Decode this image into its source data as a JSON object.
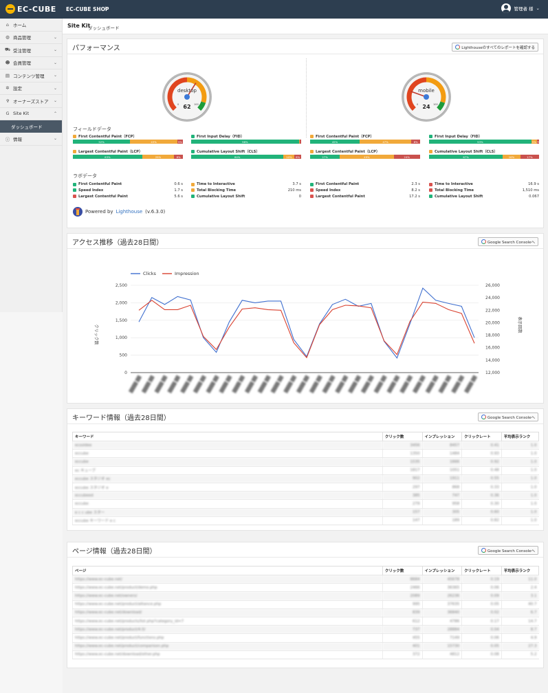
{
  "header": {
    "logo_text": "EC-CUBE",
    "shop_name": "EC-CUBE SHOP",
    "user_label": "管理者 様"
  },
  "sidebar": {
    "items": [
      {
        "label": "ホーム",
        "icon": "home-icon"
      },
      {
        "label": "商品管理",
        "icon": "store-icon"
      },
      {
        "label": "受注管理",
        "icon": "cart-icon"
      },
      {
        "label": "会員管理",
        "icon": "users-icon"
      },
      {
        "label": "コンテンツ管理",
        "icon": "document-icon"
      },
      {
        "label": "設定",
        "icon": "gear-icon"
      },
      {
        "label": "オーナーズストア",
        "icon": "plug-icon"
      },
      {
        "label": "Site Kit",
        "icon": "google-icon"
      },
      {
        "label": "情報",
        "icon": "info-icon"
      }
    ],
    "active_sub": "ダッシュボード"
  },
  "page": {
    "title": "Site Kit",
    "subtitle": "ダッシュボード"
  },
  "performance": {
    "title": "パフォーマンス",
    "button_label": "Lighthouseのすべてのレポートを確認する",
    "field_label": "フィールドデータ",
    "lab_label": "ラボデータ",
    "powered_prefix": "Powered by",
    "powered_link": "Lighthouse",
    "powered_version": "(v.6.3.0)",
    "gauges": [
      {
        "label": "desktop",
        "score": "62",
        "value": 62
      },
      {
        "label": "mobile",
        "score": "24",
        "value": 24
      }
    ],
    "field_metrics": [
      {
        "title": "First Contentful Paint（FCP）",
        "status": "orange",
        "split": [
          52,
          43,
          5
        ],
        "labels": [
          "52%",
          "43%",
          "5%"
        ]
      },
      {
        "title": "First Input Delay（FID）",
        "status": "green",
        "split": [
          98,
          1,
          1
        ],
        "labels": [
          "98%",
          "",
          ""
        ]
      },
      {
        "title": "Largest Contentful Paint（LCP）",
        "status": "orange",
        "split": [
          63,
          29,
          8
        ],
        "labels": [
          "63%",
          "29%",
          "8%"
        ]
      },
      {
        "title": "Cumulative Layout Shift（CLS）",
        "status": "green",
        "split": [
          84,
          10,
          6
        ],
        "labels": [
          "84%",
          "10%",
          "6%"
        ]
      },
      {
        "title": "First Contentful Paint（FCP）",
        "status": "orange",
        "split": [
          45,
          47,
          8
        ],
        "labels": [
          "45%",
          "47%",
          "8%"
        ]
      },
      {
        "title": "First Input Delay（FID）",
        "status": "green",
        "split": [
          93,
          5,
          2
        ],
        "labels": [
          "93%",
          "5%",
          "2%"
        ]
      },
      {
        "title": "Largest Contentful Paint（LCP）",
        "status": "orange",
        "split": [
          27,
          49,
          24
        ],
        "labels": [
          "27%",
          "49%",
          "24%"
        ]
      },
      {
        "title": "Cumulative Layout Shift（CLS）",
        "status": "orange",
        "split": [
          67,
          16,
          17
        ],
        "labels": [
          "67%",
          "16%",
          "17%"
        ]
      }
    ],
    "lab_metrics": [
      [
        {
          "name": "First Contentful Paint",
          "value": "0.6 s",
          "status": "green"
        },
        {
          "name": "Speed Index",
          "value": "1.7 s",
          "status": "green"
        },
        {
          "name": "Largest Contentful Paint",
          "value": "5.6 s",
          "status": "red"
        }
      ],
      [
        {
          "name": "Time to Interactive",
          "value": "3.7 s",
          "status": "orange"
        },
        {
          "name": "Total Blocking Time",
          "value": "210 ms",
          "status": "orange"
        },
        {
          "name": "Cumulative Layout Shift",
          "value": "0",
          "status": "green"
        }
      ],
      [
        {
          "name": "First Contentful Paint",
          "value": "2.3 s",
          "status": "green"
        },
        {
          "name": "Speed Index",
          "value": "8.2 s",
          "status": "red"
        },
        {
          "name": "Largest Contentful Paint",
          "value": "17.2 s",
          "status": "red"
        }
      ],
      [
        {
          "name": "Time to Interactive",
          "value": "16.9 s",
          "status": "red"
        },
        {
          "name": "Total Blocking Time",
          "value": "1,510 ms",
          "status": "red"
        },
        {
          "name": "Cumulative Layout Shift",
          "value": "0.067",
          "status": "green"
        }
      ]
    ]
  },
  "access": {
    "title": "アクセス推移（過去28日間）",
    "button_label": "Google Search Consoleへ"
  },
  "chart_data": {
    "type": "line",
    "title": "",
    "ylabel": "クリック数",
    "y2label": "表示回数",
    "ylim": [
      0,
      2500
    ],
    "y2lim": [
      12000,
      26000
    ],
    "yticks": [
      "0",
      "500",
      "1,000",
      "1,500",
      "2,000",
      "2,500"
    ],
    "y2ticks": [
      "12,000",
      "14,000",
      "16,000",
      "18,000",
      "20,000",
      "22,000",
      "24,000",
      "26,000"
    ],
    "legend_position": "top-left",
    "series": [
      {
        "name": "Clicks",
        "axis": "left",
        "color": "#3f6fcf",
        "values": [
          1450,
          2150,
          1950,
          2180,
          2080,
          1000,
          580,
          1450,
          2070,
          2000,
          2050,
          2050,
          950,
          460,
          1400,
          1950,
          2100,
          1900,
          1980,
          900,
          420,
          1400,
          2420,
          2070,
          1980,
          1900,
          1000
        ]
      },
      {
        "name": "Impression",
        "axis": "right",
        "color": "#d9412f",
        "values": [
          22000,
          23600,
          22100,
          22100,
          22800,
          17800,
          15700,
          19300,
          22200,
          22400,
          22100,
          22000,
          16800,
          14400,
          19700,
          22100,
          22800,
          22700,
          22400,
          17100,
          14900,
          20200,
          23300,
          23100,
          22100,
          21500,
          16700
        ]
      }
    ]
  },
  "keywords": {
    "title": "キーワード情報（過去28日間）",
    "button_label": "Google Search Consoleへ",
    "columns": [
      "キーワード",
      "クリック数",
      "インプレッション",
      "クリックレート",
      "平均表示ランク"
    ],
    "rows": [
      [
        "ecsoldee",
        "3456",
        "8457",
        "0.41",
        "1.0"
      ],
      [
        "eccube",
        "1350",
        "1484",
        "0.93",
        "1.0"
      ],
      [
        "eccube",
        "1535",
        "1666",
        "0.92",
        "1.0"
      ],
      [
        "ec キューブ",
        "1817",
        "1051",
        "0.48",
        "1.0"
      ],
      [
        "eccube スタジオ ec",
        "902",
        "1911",
        "0.55",
        "1.0"
      ],
      [
        "eccube スタジオ e",
        "297",
        "868",
        "0.33",
        "1.0"
      ],
      [
        "eccubeed",
        "385",
        "747",
        "0.36",
        "1.0"
      ],
      [
        "eccube",
        "279",
        "958",
        "0.30",
        "1.0"
      ],
      [
        "e c c ube スター",
        "157",
        "305",
        "0.60",
        "1.0"
      ],
      [
        "eccube キーワード e c",
        "147",
        "189",
        "0.82",
        "1.0"
      ]
    ]
  },
  "pages": {
    "title": "ページ情報（過去28日間）",
    "button_label": "Google Search Consoleへ",
    "columns": [
      "ページ",
      "クリック数",
      "インプレッション",
      "クリックレート",
      "平均表示ランク"
    ],
    "rows": [
      [
        "https://www.ec-cube.net/",
        "8684",
        "45678",
        "0.19",
        "11.0"
      ],
      [
        "https://www.ec-cube.net/product/demo.php",
        "2466",
        "36365",
        "0.06",
        "2.4"
      ],
      [
        "https://www.ec-cube.net/owners/",
        "2089",
        "26236",
        "0.09",
        "3.1"
      ],
      [
        "https://www.ec-cube.net/product/alliance.php",
        "995",
        "37635",
        "0.05",
        "40.7"
      ],
      [
        "https://www.ec-cube.net/download/",
        "839",
        "36840",
        "0.02",
        "6.7"
      ],
      [
        "https://www.ec-cube.net/products/list.php?category_id=7",
        "612",
        "4786",
        "0.17",
        "14.7"
      ],
      [
        "https://www.ec-cube.net/product/4.0/",
        "737",
        "28884",
        "0.04",
        "8.7"
      ],
      [
        "https://www.ec-cube.net/product/functions.php",
        "455",
        "7149",
        "0.06",
        "4.9"
      ],
      [
        "https://www.ec-cube.net/product/comparison.php",
        "401",
        "15730",
        "0.05",
        "27.3"
      ],
      [
        "https://www.ec-cube.net/download/other.php",
        "372",
        "4812",
        "0.08",
        "5.2"
      ]
    ]
  }
}
